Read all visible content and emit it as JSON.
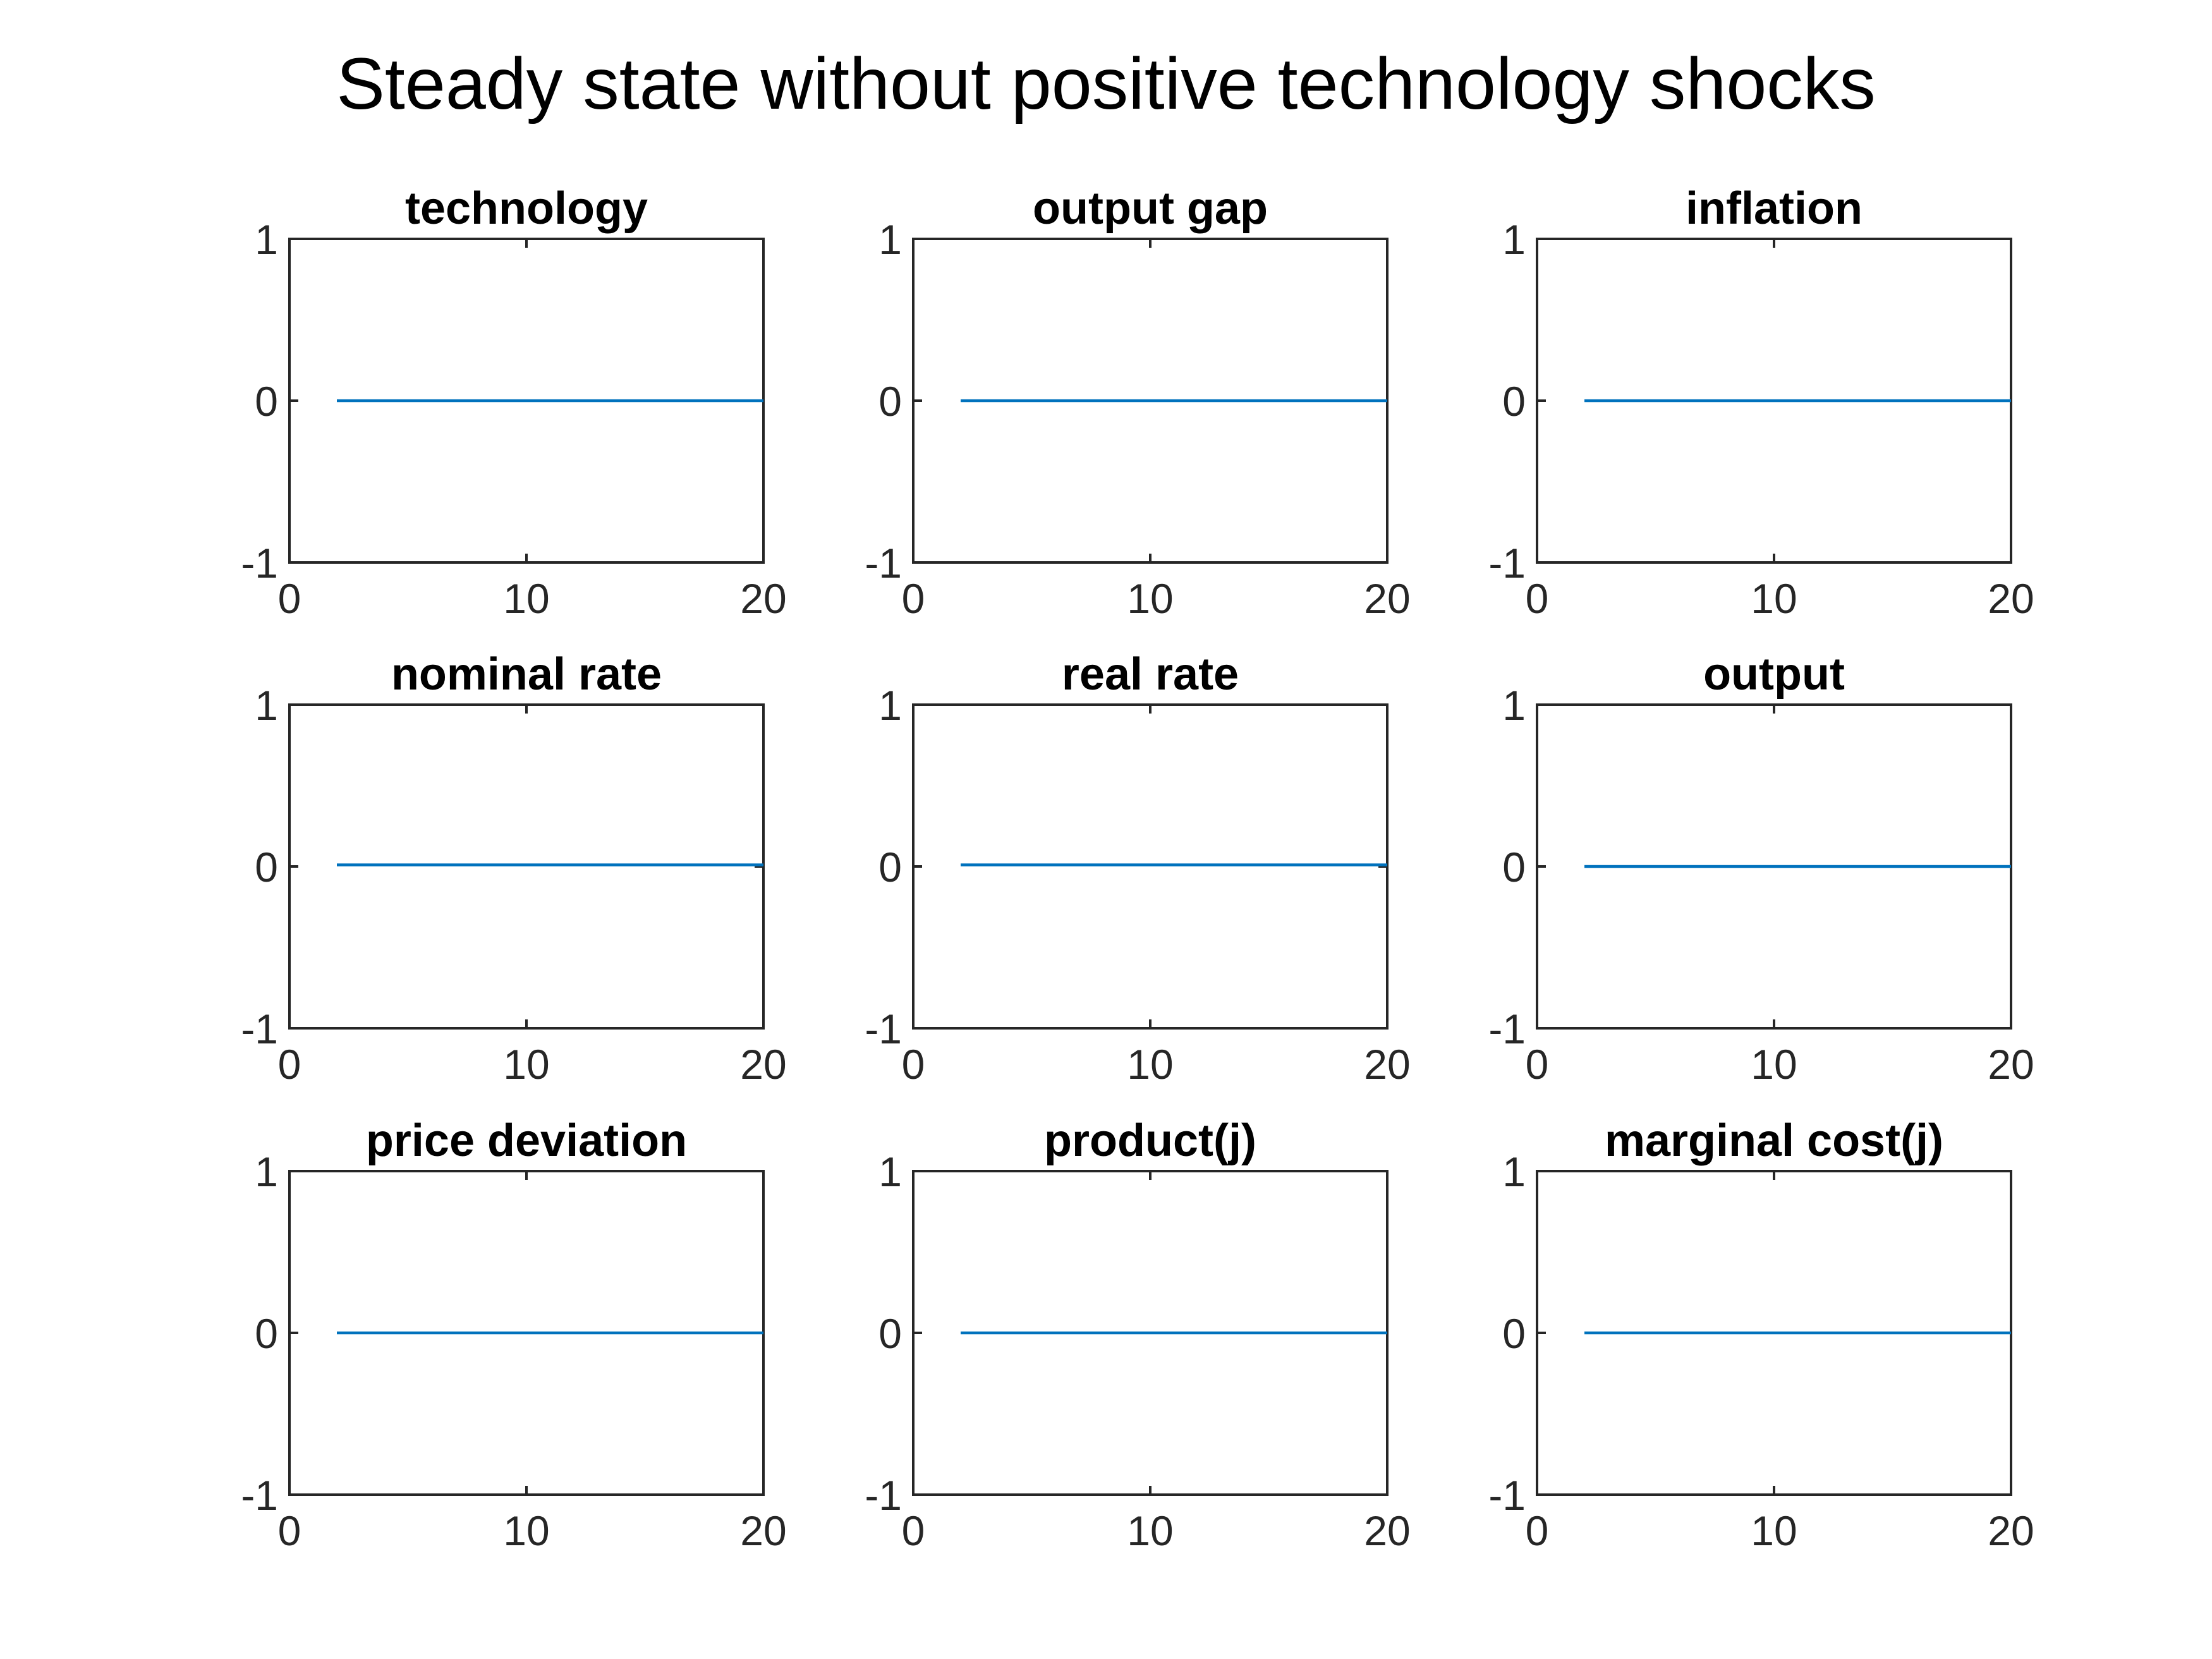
{
  "figure": {
    "title": "Steady state without positive technology shocks",
    "line_color": "#0072BD"
  },
  "chart_data": [
    {
      "type": "line",
      "title": "technology",
      "xlim": [
        0,
        20
      ],
      "ylim": [
        -1,
        1
      ],
      "xticks": [
        "0",
        "10",
        "20"
      ],
      "yticks": [
        "-1",
        "0",
        "1"
      ],
      "series": [
        {
          "x": [
            2,
            3,
            4,
            5,
            6,
            7,
            8,
            9,
            10,
            11,
            12,
            13,
            14,
            15,
            16,
            17,
            18,
            19,
            20
          ],
          "y": [
            0,
            0,
            0,
            0,
            0,
            0,
            0,
            0,
            0,
            0,
            0,
            0,
            0,
            0,
            0,
            0,
            0,
            0,
            0
          ]
        }
      ]
    },
    {
      "type": "line",
      "title": "output gap",
      "xlim": [
        0,
        20
      ],
      "ylim": [
        -1,
        1
      ],
      "xticks": [
        "0",
        "10",
        "20"
      ],
      "yticks": [
        "-1",
        "0",
        "1"
      ],
      "series": [
        {
          "x": [
            2,
            3,
            4,
            5,
            6,
            7,
            8,
            9,
            10,
            11,
            12,
            13,
            14,
            15,
            16,
            17,
            18,
            19,
            20
          ],
          "y": [
            0,
            0,
            0,
            0,
            0,
            0,
            0,
            0,
            0,
            0,
            0,
            0,
            0,
            0,
            0,
            0,
            0,
            0,
            0
          ]
        }
      ]
    },
    {
      "type": "line",
      "title": "inflation",
      "xlim": [
        0,
        20
      ],
      "ylim": [
        -1,
        1
      ],
      "xticks": [
        "0",
        "10",
        "20"
      ],
      "yticks": [
        "-1",
        "0",
        "1"
      ],
      "series": [
        {
          "x": [
            2,
            3,
            4,
            5,
            6,
            7,
            8,
            9,
            10,
            11,
            12,
            13,
            14,
            15,
            16,
            17,
            18,
            19,
            20
          ],
          "y": [
            0,
            0,
            0,
            0,
            0,
            0,
            0,
            0,
            0,
            0,
            0,
            0,
            0,
            0,
            0,
            0,
            0,
            0,
            0
          ]
        }
      ]
    },
    {
      "type": "line",
      "title": "nominal rate",
      "xlim": [
        0,
        20
      ],
      "ylim": [
        -1,
        1
      ],
      "xticks": [
        "0",
        "10",
        "20"
      ],
      "yticks": [
        "-1",
        "0",
        "1"
      ],
      "series": [
        {
          "x": [
            2,
            3,
            4,
            5,
            6,
            7,
            8,
            9,
            10,
            11,
            12,
            13,
            14,
            15,
            16,
            17,
            18,
            19,
            20
          ],
          "y": [
            0.01,
            0.01,
            0.01,
            0.01,
            0.01,
            0.01,
            0.01,
            0.01,
            0.01,
            0.01,
            0.01,
            0.01,
            0.01,
            0.01,
            0.01,
            0.01,
            0.01,
            0.01,
            0.01
          ]
        }
      ]
    },
    {
      "type": "line",
      "title": "real rate",
      "xlim": [
        0,
        20
      ],
      "ylim": [
        -1,
        1
      ],
      "xticks": [
        "0",
        "10",
        "20"
      ],
      "yticks": [
        "-1",
        "0",
        "1"
      ],
      "series": [
        {
          "x": [
            2,
            3,
            4,
            5,
            6,
            7,
            8,
            9,
            10,
            11,
            12,
            13,
            14,
            15,
            16,
            17,
            18,
            19,
            20
          ],
          "y": [
            0.01,
            0.01,
            0.01,
            0.01,
            0.01,
            0.01,
            0.01,
            0.01,
            0.01,
            0.01,
            0.01,
            0.01,
            0.01,
            0.01,
            0.01,
            0.01,
            0.01,
            0.01,
            0.01
          ]
        }
      ]
    },
    {
      "type": "line",
      "title": "output",
      "xlim": [
        0,
        20
      ],
      "ylim": [
        -1,
        1
      ],
      "xticks": [
        "0",
        "10",
        "20"
      ],
      "yticks": [
        "-1",
        "0",
        "1"
      ],
      "series": [
        {
          "x": [
            2,
            3,
            4,
            5,
            6,
            7,
            8,
            9,
            10,
            11,
            12,
            13,
            14,
            15,
            16,
            17,
            18,
            19,
            20
          ],
          "y": [
            0,
            0,
            0,
            0,
            0,
            0,
            0,
            0,
            0,
            0,
            0,
            0,
            0,
            0,
            0,
            0,
            0,
            0,
            0
          ]
        }
      ]
    },
    {
      "type": "line",
      "title": "price deviation",
      "xlim": [
        0,
        20
      ],
      "ylim": [
        -1,
        1
      ],
      "xticks": [
        "0",
        "10",
        "20"
      ],
      "yticks": [
        "-1",
        "0",
        "1"
      ],
      "series": [
        {
          "x": [
            2,
            3,
            4,
            5,
            6,
            7,
            8,
            9,
            10,
            11,
            12,
            13,
            14,
            15,
            16,
            17,
            18,
            19,
            20
          ],
          "y": [
            0,
            0,
            0,
            0,
            0,
            0,
            0,
            0,
            0,
            0,
            0,
            0,
            0,
            0,
            0,
            0,
            0,
            0,
            0
          ]
        }
      ]
    },
    {
      "type": "line",
      "title": "product(j)",
      "xlim": [
        0,
        20
      ],
      "ylim": [
        -1,
        1
      ],
      "xticks": [
        "0",
        "10",
        "20"
      ],
      "yticks": [
        "-1",
        "0",
        "1"
      ],
      "series": [
        {
          "x": [
            2,
            3,
            4,
            5,
            6,
            7,
            8,
            9,
            10,
            11,
            12,
            13,
            14,
            15,
            16,
            17,
            18,
            19,
            20
          ],
          "y": [
            0,
            0,
            0,
            0,
            0,
            0,
            0,
            0,
            0,
            0,
            0,
            0,
            0,
            0,
            0,
            0,
            0,
            0,
            0
          ]
        }
      ]
    },
    {
      "type": "line",
      "title": "marginal cost(j)",
      "xlim": [
        0,
        20
      ],
      "ylim": [
        -1,
        1
      ],
      "xticks": [
        "0",
        "10",
        "20"
      ],
      "yticks": [
        "-1",
        "0",
        "1"
      ],
      "series": [
        {
          "x": [
            2,
            3,
            4,
            5,
            6,
            7,
            8,
            9,
            10,
            11,
            12,
            13,
            14,
            15,
            16,
            17,
            18,
            19,
            20
          ],
          "y": [
            0,
            0,
            0,
            0,
            0,
            0,
            0,
            0,
            0,
            0,
            0,
            0,
            0,
            0,
            0,
            0,
            0,
            0,
            0
          ]
        }
      ]
    }
  ]
}
